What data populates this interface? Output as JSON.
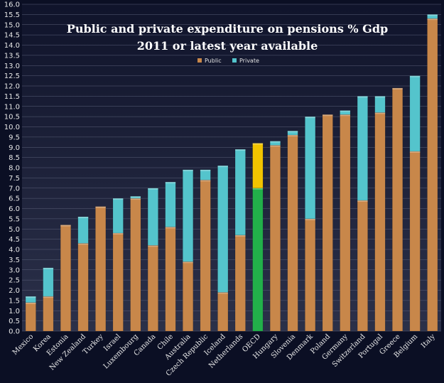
{
  "chart_data": {
    "type": "bar",
    "stacked": true,
    "title": "Public and private expenditure on pensions % Gdp",
    "subtitle": "2011 or latest year available",
    "categories": [
      "Mexico",
      "Korea",
      "Estonia",
      "New Zealand",
      "Turkey",
      "Israel",
      "Luxembourg",
      "Canada",
      "Chile",
      "Australia",
      "Czech Republic",
      "Iceland",
      "Netherlands",
      "OECD",
      "Hungary",
      "Slovenia",
      "Denmark",
      "Poland",
      "Germany",
      "Switzerland",
      "Portugal",
      "Greece",
      "Belgium",
      "Italy"
    ],
    "series": [
      {
        "name": "Public",
        "values": [
          1.4,
          1.7,
          5.2,
          4.3,
          6.1,
          4.8,
          6.5,
          4.2,
          5.1,
          3.4,
          7.4,
          1.9,
          4.7,
          7.0,
          9.1,
          9.6,
          5.5,
          10.6,
          10.6,
          6.4,
          10.7,
          11.9,
          8.8,
          15.3
        ]
      },
      {
        "name": "Private",
        "values": [
          0.3,
          1.4,
          0.0,
          1.3,
          0.0,
          1.7,
          0.1,
          2.8,
          2.2,
          4.5,
          0.5,
          6.2,
          4.2,
          2.2,
          0.2,
          0.2,
          5.0,
          0.0,
          0.2,
          5.1,
          0.8,
          0.0,
          3.7,
          0.2
        ]
      }
    ],
    "highlight_category": "OECD",
    "ylim": [
      0,
      16
    ],
    "ytick_step": 0.5,
    "grid": true,
    "legend": "top-center",
    "colors": {
      "public": "#c8874a",
      "private": "#54c4cc",
      "highlight_public": "#22b04a",
      "highlight_private": "#f2c400",
      "background": "#0b0f24",
      "plot_background": "#1a1e36"
    }
  }
}
